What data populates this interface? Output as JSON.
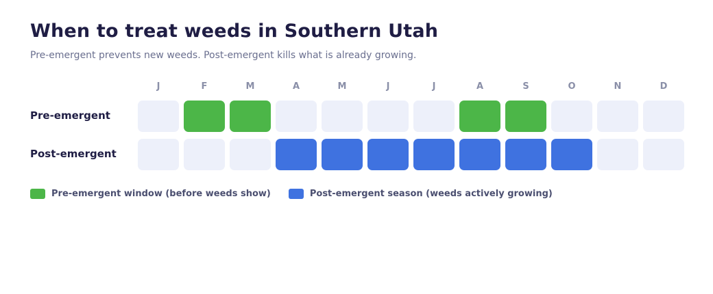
{
  "chart_data": {
    "type": "heatmap",
    "title": "When to treat weeds in Southern Utah",
    "subtitle": "Pre-emergent prevents new weeds. Post-emergent kills what is already growing.",
    "months": [
      "J",
      "F",
      "M",
      "A",
      "M",
      "J",
      "J",
      "A",
      "S",
      "O",
      "N",
      "D"
    ],
    "rows": [
      {
        "label": "Pre-emergent",
        "active": [
          false,
          true,
          true,
          false,
          false,
          false,
          false,
          true,
          true,
          false,
          false,
          false
        ]
      },
      {
        "label": "Post-emergent",
        "active": [
          false,
          false,
          false,
          true,
          true,
          true,
          true,
          true,
          true,
          true,
          false,
          false
        ]
      }
    ],
    "legend": [
      {
        "label": "Pre-emergent window (before weeds show)",
        "color": "#4cb648"
      },
      {
        "label": "Post-emergent season (weeds actively growing)",
        "color": "#3f72e0"
      }
    ],
    "inactive_color": "#edf0fa"
  }
}
